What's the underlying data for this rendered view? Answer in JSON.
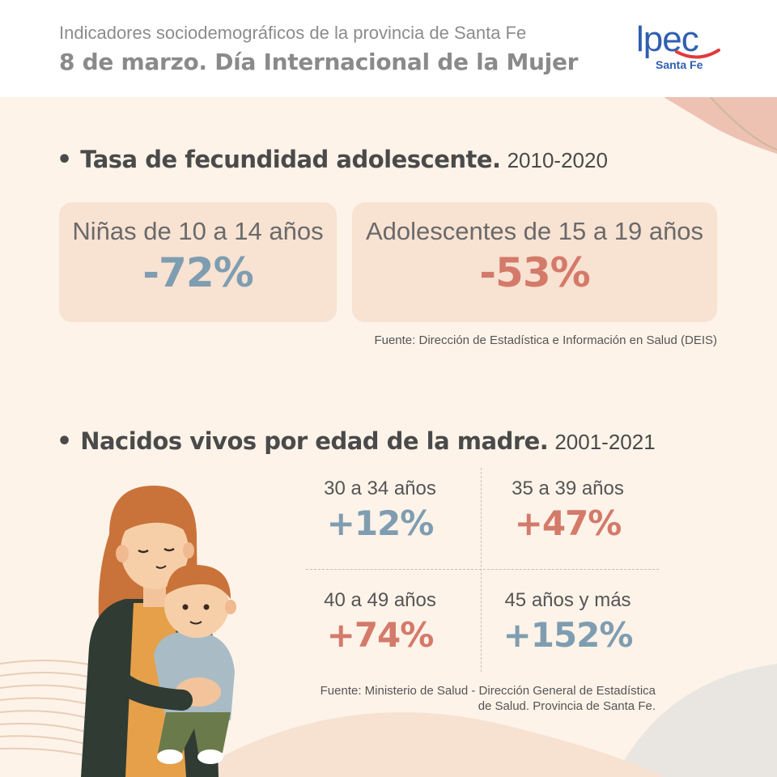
{
  "header": {
    "subtitle": "Indicadores sociodemográficos de la provincia de Santa Fe",
    "title": "8 de marzo. Día Internacional de la Mujer",
    "logo_main": "lpec",
    "logo_sub": "Santa Fe"
  },
  "section1": {
    "bullet": "•",
    "title": "Tasa de fecundidad adolescente.",
    "years": "2010-2020",
    "cards": [
      {
        "label": "Niñas de 10 a 14 años",
        "value": "-72%"
      },
      {
        "label": "Adolescentes de 15 a 19 años",
        "value": "-53%"
      }
    ],
    "source": "Fuente: Dirección de Estadística e Información en Salud (DEIS)"
  },
  "section2": {
    "bullet": "•",
    "title": "Nacidos vivos por edad de la madre.",
    "years": "2001-2021",
    "cells": [
      {
        "label": "30 a 34 años",
        "value": "+12%"
      },
      {
        "label": "35 a 39 años",
        "value": "+47%"
      },
      {
        "label": "40 a 49 años",
        "value": "+74%"
      },
      {
        "label": "45 años y más",
        "value": "+152%"
      }
    ],
    "source_line1": "Fuente: Ministerio de Salud - Dirección General de Estadística",
    "source_line2": "de Salud. Provincia de Santa Fe."
  },
  "colors": {
    "background": "#fdf3e9",
    "card": "#f8e2d2",
    "blue_accent": "#7f9db0",
    "red_accent": "#d47a6a",
    "logo_blue": "#2f5fb0",
    "logo_red": "#e03a3e"
  },
  "illustration": {
    "icon": "mother-and-child-icon"
  }
}
